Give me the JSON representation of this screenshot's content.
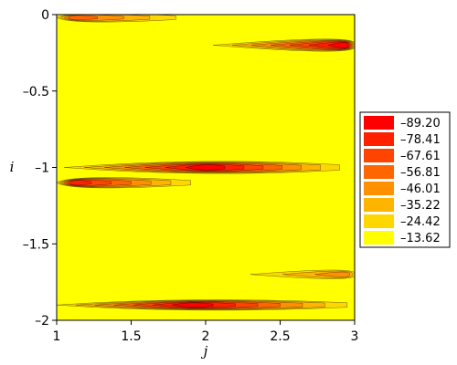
{
  "chart_data": {
    "type": "heatmap",
    "subtype": "filled-contour",
    "xlabel": "j",
    "ylabel": "i",
    "xlim": [
      1,
      3
    ],
    "ylim": [
      -2,
      0
    ],
    "y_axis_reversed": true,
    "x_ticks": [
      "1",
      "1.5",
      "2",
      "2.5",
      "3"
    ],
    "y_ticks": [
      "0",
      "–0.5",
      "–1",
      "–1.5",
      "–2"
    ],
    "legend_position": "right",
    "levels": [
      {
        "label": "–89.20",
        "color": "#ff0000"
      },
      {
        "label": "–78.41",
        "color": "#ff2000"
      },
      {
        "label": "–67.61",
        "color": "#ff4400"
      },
      {
        "label": "–56.81",
        "color": "#ff6600"
      },
      {
        "label": "–46.01",
        "color": "#ff9100"
      },
      {
        "label": "–35.22",
        "color": "#ffb400"
      },
      {
        "label": "–24.42",
        "color": "#ffd700"
      },
      {
        "label": "–13.62",
        "color": "#ffff00"
      }
    ],
    "background_color": "#ffff00",
    "wells": [
      {
        "x_start": 1.0,
        "x_end": 1.8,
        "x_center": 1.1,
        "y_center": -0.02,
        "y_halfwidth": 0.05,
        "depth": 4
      },
      {
        "x_start": 2.05,
        "x_end": 3.0,
        "x_center": 2.95,
        "y_center": -0.2,
        "y_halfwidth": 0.07,
        "depth": 7
      },
      {
        "x_start": 1.05,
        "x_end": 2.9,
        "x_center": 2.0,
        "y_center": -1.0,
        "y_halfwidth": 0.07,
        "depth": 7
      },
      {
        "x_start": 1.0,
        "x_end": 1.9,
        "x_center": 1.1,
        "y_center": -1.1,
        "y_halfwidth": 0.06,
        "depth": 6
      },
      {
        "x_start": 1.0,
        "x_end": 2.95,
        "x_center": 1.9,
        "y_center": -1.9,
        "y_halfwidth": 0.06,
        "depth": 7
      },
      {
        "x_start": 2.3,
        "x_end": 3.0,
        "x_center": 2.95,
        "y_center": -1.7,
        "y_halfwidth": 0.05,
        "depth": 3
      }
    ]
  }
}
